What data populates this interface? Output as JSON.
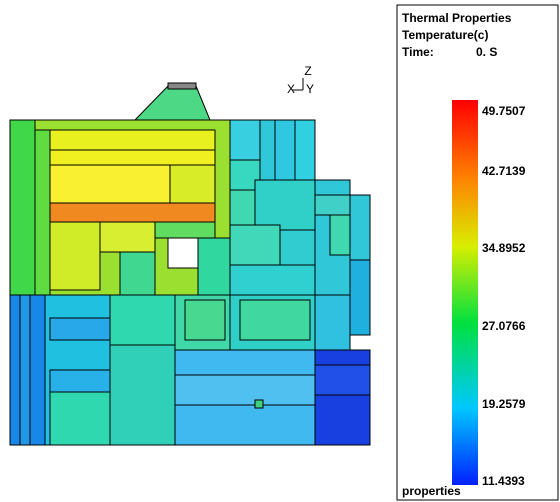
{
  "triad": {
    "z": "Z",
    "x": "X",
    "y": "Y"
  },
  "legend": {
    "title": "Thermal Properties",
    "quantity": "Temperature(c)",
    "time_label": "Time:",
    "time_value": "0. S",
    "scale_labels": [
      "49.7507",
      "42.7139",
      "34.8952",
      "27.0766",
      "19.2579",
      "11.4393"
    ],
    "footer": "properties"
  }
}
